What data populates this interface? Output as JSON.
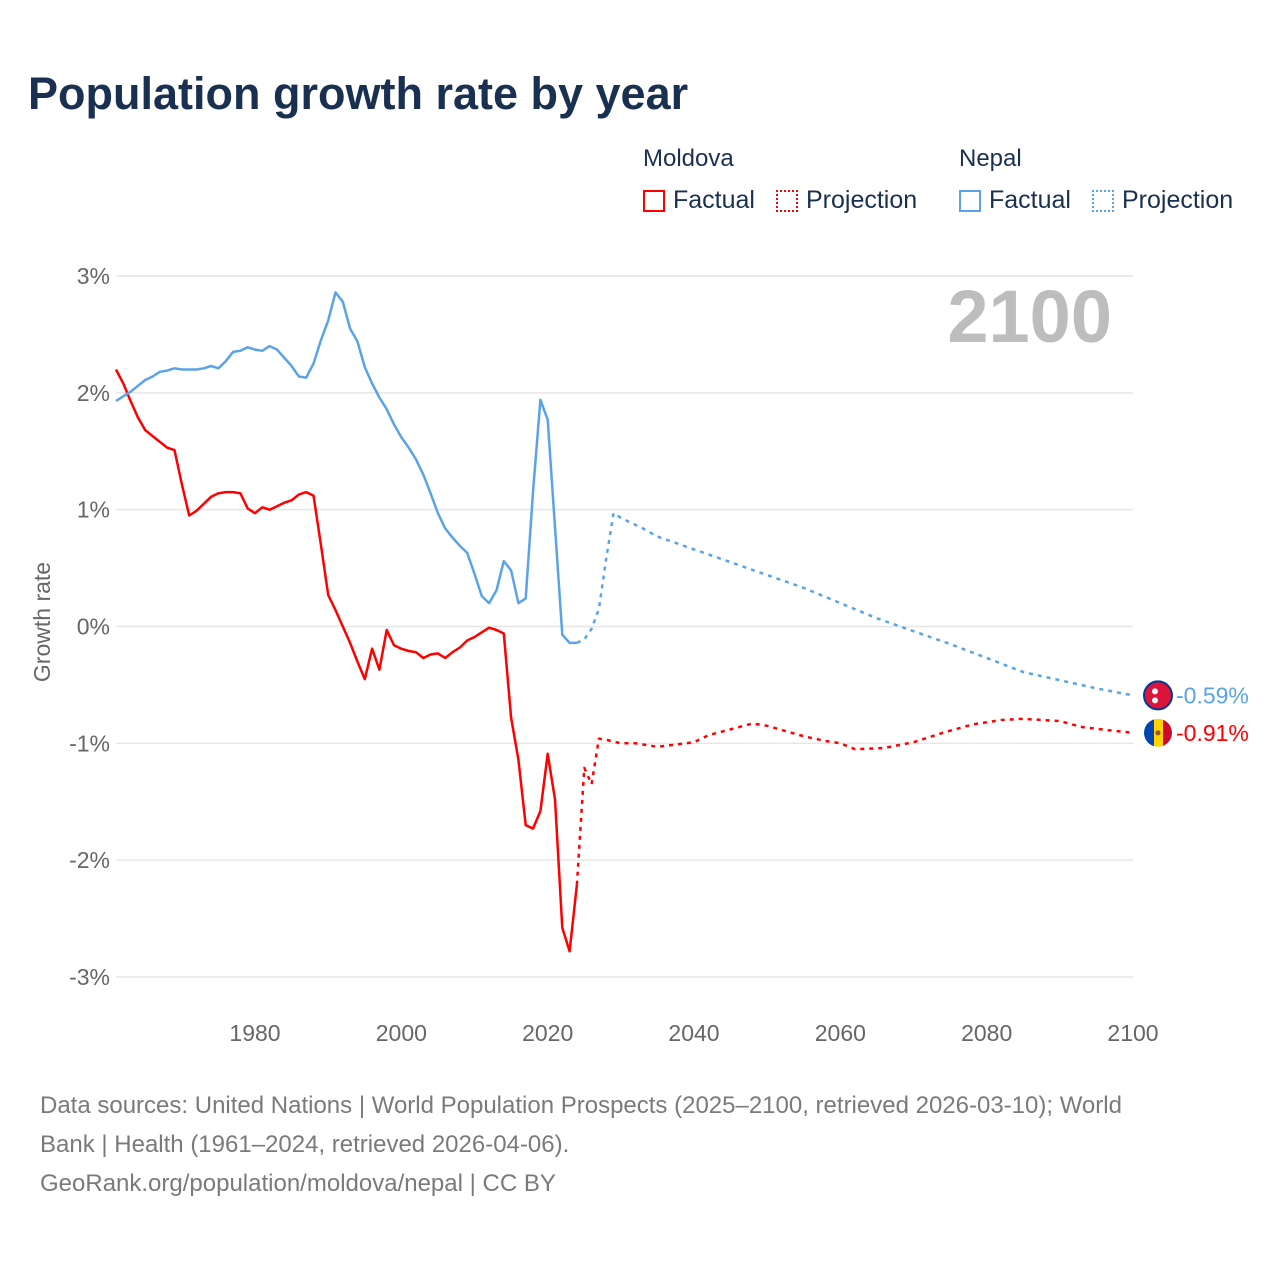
{
  "title": "Population growth rate by year",
  "legend": {
    "groups": [
      {
        "name": "Moldova",
        "factual": "Factual",
        "projection": "Projection",
        "color": "#ff0000"
      },
      {
        "name": "Nepal",
        "factual": "Factual",
        "projection": "Projection",
        "color": "#5aa3e8"
      }
    ]
  },
  "year_label": "2100",
  "end_labels": {
    "nepal": "-0.59%",
    "moldova": "-0.91%"
  },
  "footer": {
    "line1": "Data sources: United Nations | World Population Prospects (2025–2100, retrieved 2026-03-10); World",
    "line2": "Bank | Health (1961–2024, retrieved 2026-04-06).",
    "line3": "GeoRank.org/population/moldova/nepal | CC BY"
  },
  "chart_data": {
    "type": "line",
    "title": "Population growth rate by year",
    "xlabel": "",
    "ylabel": "Growth rate",
    "xlim": [
      1961,
      2100
    ],
    "ylim": [
      -3,
      3
    ],
    "xticks": [
      1980,
      2000,
      2020,
      2040,
      2060,
      2080,
      2100
    ],
    "yticks": [
      3,
      2,
      1,
      0,
      -1,
      -2,
      -3
    ],
    "ytick_labels": [
      "3%",
      "2%",
      "1%",
      "0%",
      "-1%",
      "-2%",
      "-3%"
    ],
    "grid": true,
    "legend_position": "top-right",
    "series": [
      {
        "name": "Moldova Factual",
        "color": "#ff0000",
        "dash": false,
        "x": [
          1961,
          1962,
          1963,
          1964,
          1965,
          1966,
          1967,
          1968,
          1969,
          1970,
          1971,
          1972,
          1973,
          1974,
          1975,
          1976,
          1977,
          1978,
          1979,
          1980,
          1981,
          1982,
          1983,
          1984,
          1985,
          1986,
          1987,
          1988,
          1989,
          1990,
          1991,
          1992,
          1993,
          1994,
          1995,
          1996,
          1997,
          1998,
          1999,
          2000,
          2001,
          2002,
          2003,
          2004,
          2005,
          2006,
          2007,
          2008,
          2009,
          2010,
          2011,
          2012,
          2013,
          2014,
          2015,
          2016,
          2017,
          2018,
          2019,
          2020,
          2021,
          2022,
          2023,
          2024
        ],
        "y": [
          2.2,
          2.08,
          1.93,
          1.79,
          1.68,
          1.63,
          1.58,
          1.53,
          1.51,
          1.22,
          0.95,
          0.99,
          1.05,
          1.11,
          1.14,
          1.15,
          1.15,
          1.14,
          1.01,
          0.97,
          1.02,
          1.0,
          1.03,
          1.06,
          1.08,
          1.13,
          1.15,
          1.12,
          0.7,
          0.27,
          0.14,
          0.0,
          -0.14,
          -0.3,
          -0.45,
          -0.19,
          -0.37,
          -0.03,
          -0.16,
          -0.19,
          -0.21,
          -0.22,
          -0.27,
          -0.24,
          -0.23,
          -0.27,
          -0.22,
          -0.18,
          -0.12,
          -0.09,
          -0.05,
          -0.01,
          -0.03,
          -0.06,
          -0.78,
          -1.14,
          -1.7,
          -1.73,
          -1.58,
          -1.09,
          -1.48,
          -2.58,
          -2.78,
          -2.21
        ]
      },
      {
        "name": "Moldova Projection",
        "color": "#ff0000",
        "dash": true,
        "x": [
          2024,
          2025,
          2026,
          2027,
          2028,
          2030,
          2032,
          2035,
          2040,
          2042,
          2045,
          2048,
          2050,
          2055,
          2058,
          2060,
          2062,
          2066,
          2070,
          2074,
          2078,
          2082,
          2085,
          2090,
          2093,
          2097,
          2100
        ],
        "y": [
          -2.21,
          -1.21,
          -1.35,
          -0.96,
          -0.97,
          -1.0,
          -1.0,
          -1.03,
          -0.99,
          -0.93,
          -0.88,
          -0.83,
          -0.85,
          -0.94,
          -0.98,
          -1.0,
          -1.05,
          -1.04,
          -0.99,
          -0.91,
          -0.84,
          -0.8,
          -0.79,
          -0.81,
          -0.86,
          -0.89,
          -0.91
        ]
      },
      {
        "name": "Nepal Factual",
        "color": "#5aa3e8",
        "dash": false,
        "x": [
          1961,
          1962,
          1963,
          1964,
          1965,
          1966,
          1967,
          1968,
          1969,
          1970,
          1971,
          1972,
          1973,
          1974,
          1975,
          1976,
          1977,
          1978,
          1979,
          1980,
          1981,
          1982,
          1983,
          1984,
          1985,
          1986,
          1987,
          1988,
          1989,
          1990,
          1991,
          1992,
          1993,
          1994,
          1995,
          1996,
          1997,
          1998,
          1999,
          2000,
          2001,
          2002,
          2003,
          2004,
          2005,
          2006,
          2007,
          2008,
          2009,
          2010,
          2011,
          2012,
          2013,
          2014,
          2015,
          2016,
          2017,
          2018,
          2019,
          2020,
          2021,
          2022,
          2023,
          2024
        ],
        "y": [
          1.93,
          1.97,
          2.01,
          2.06,
          2.11,
          2.14,
          2.18,
          2.19,
          2.21,
          2.2,
          2.2,
          2.2,
          2.21,
          2.23,
          2.21,
          2.27,
          2.35,
          2.36,
          2.39,
          2.37,
          2.36,
          2.4,
          2.37,
          2.3,
          2.23,
          2.14,
          2.13,
          2.25,
          2.45,
          2.62,
          2.86,
          2.78,
          2.55,
          2.44,
          2.22,
          2.08,
          1.96,
          1.86,
          1.73,
          1.62,
          1.53,
          1.43,
          1.3,
          1.14,
          0.97,
          0.84,
          0.76,
          0.69,
          0.63,
          0.45,
          0.26,
          0.2,
          0.31,
          0.56,
          0.48,
          0.2,
          0.24,
          1.15,
          1.94,
          1.77,
          0.85,
          -0.07,
          -0.14,
          -0.14
        ]
      },
      {
        "name": "Nepal Projection",
        "color": "#5aa3e8",
        "dash": true,
        "x": [
          2024,
          2025,
          2026,
          2027,
          2028,
          2029,
          2030,
          2033,
          2035,
          2040,
          2045,
          2050,
          2055,
          2060,
          2065,
          2070,
          2075,
          2080,
          2085,
          2090,
          2095,
          2100
        ],
        "y": [
          -0.14,
          -0.11,
          -0.02,
          0.15,
          0.58,
          0.97,
          0.93,
          0.84,
          0.77,
          0.66,
          0.55,
          0.44,
          0.33,
          0.2,
          0.07,
          -0.04,
          -0.15,
          -0.27,
          -0.39,
          -0.46,
          -0.53,
          -0.59
        ]
      }
    ]
  }
}
